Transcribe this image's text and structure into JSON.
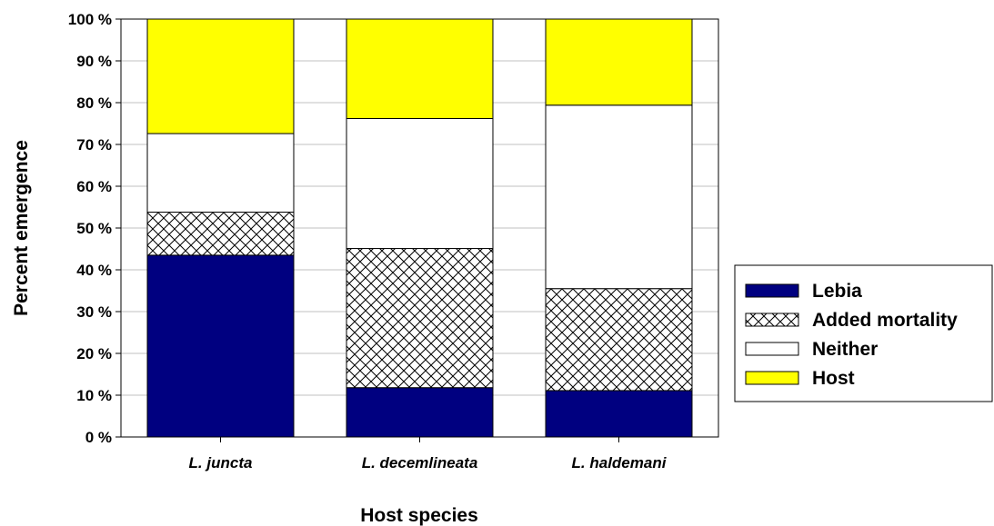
{
  "chart_data": {
    "type": "bar",
    "stacked": true,
    "xlabel": "Host species",
    "ylabel": "Percent emergence",
    "ylim": [
      0,
      100
    ],
    "y_ticks": [
      0,
      10,
      20,
      30,
      40,
      50,
      60,
      70,
      80,
      90,
      100
    ],
    "y_tick_suffix": " %",
    "grid": "horizontal",
    "legend_position": "right",
    "categories": [
      "L. juncta",
      "L. decemlineata",
      "L. haldemani"
    ],
    "series": [
      {
        "name": "Lebia",
        "values": [
          43.5,
          11.8,
          11.1
        ],
        "color": "#000080",
        "pattern": "solid"
      },
      {
        "name": "Added mortality",
        "values": [
          10.3,
          33.3,
          24.4
        ],
        "color": "#ffffff",
        "pattern": "crosshatch"
      },
      {
        "name": "Neither",
        "values": [
          18.8,
          31.1,
          43.9
        ],
        "color": "#ffffff",
        "pattern": "solid"
      },
      {
        "name": "Host",
        "values": [
          27.4,
          23.8,
          20.6
        ],
        "color": "#ffff00",
        "pattern": "solid"
      }
    ]
  }
}
